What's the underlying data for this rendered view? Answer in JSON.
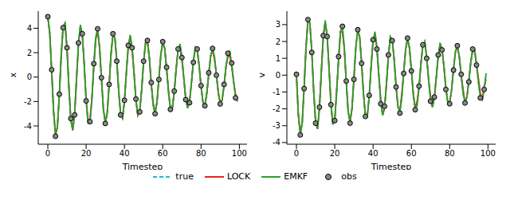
{
  "chart_data": [
    {
      "type": "line",
      "x_label": "Timestep",
      "y_label": "x",
      "legend": "bottom",
      "grid": false,
      "xlim": [
        -5,
        104
      ],
      "xticks": [
        0,
        20,
        40,
        60,
        80,
        100
      ],
      "ylim": [
        -5.5,
        5.4
      ],
      "yticks": [
        -4,
        -2,
        0,
        2,
        4
      ],
      "x": [
        0,
        1,
        2,
        3,
        4,
        5,
        6,
        7,
        8,
        9,
        10,
        11,
        12,
        13,
        14,
        15,
        16,
        17,
        18,
        19,
        20,
        21,
        22,
        23,
        24,
        25,
        26,
        27,
        28,
        29,
        30,
        31,
        32,
        33,
        34,
        35,
        36,
        37,
        38,
        39,
        40,
        41,
        42,
        43,
        44,
        45,
        46,
        47,
        48,
        49,
        50,
        51,
        52,
        53,
        54,
        55,
        56,
        57,
        58,
        59,
        60,
        61,
        62,
        63,
        64,
        65,
        66,
        67,
        68,
        69,
        70,
        71,
        72,
        73,
        74,
        75,
        76,
        77,
        78,
        79,
        80,
        81,
        82,
        83,
        84,
        85,
        86,
        87,
        88,
        89,
        90,
        91,
        92,
        93,
        94,
        95,
        96,
        97,
        98,
        99
      ],
      "series": [
        {
          "name": "true",
          "color": "#17becf",
          "line_style": "dashed",
          "values": [
            4.9,
            3.62,
            0.53,
            -2.77,
            -4.61,
            -4.09,
            -1.49,
            1.8,
            4.13,
            4.33,
            2.33,
            -0.81,
            -3.48,
            -4.35,
            -3.0,
            -0.15,
            2.71,
            4.15,
            3.48,
            1.04,
            -1.87,
            -3.79,
            -3.76,
            -1.82,
            1.0,
            3.26,
            3.84,
            2.45,
            -0.14,
            -2.62,
            -3.73,
            -2.94,
            -0.67,
            1.9,
            3.46,
            3.23,
            1.38,
            -1.13,
            -3.03,
            -3.36,
            -1.98,
            0.37,
            2.5,
            3.33,
            2.46,
            0.36,
            -1.88,
            -3.13,
            -2.78,
            -1.01,
            1.22,
            2.8,
            2.94,
            1.58,
            -0.55,
            -2.36,
            -2.95,
            -2.04,
            -0.1,
            1.84,
            2.83,
            2.36,
            0.71,
            -1.27,
            -2.58,
            -2.55,
            -1.24,
            0.68,
            2.22,
            2.61,
            1.67,
            -0.1,
            -1.79,
            -2.53,
            -2.0,
            -0.45,
            1.29,
            2.35,
            2.2,
            0.94,
            -0.77,
            -2.06,
            -2.28,
            -1.35,
            0.25,
            1.7,
            2.26,
            1.67,
            0.24,
            -1.28,
            -2.13,
            -1.89,
            -0.69,
            0.83,
            1.9,
            1.99,
            1.07,
            -0.37,
            -1.61,
            -2.0
          ]
        },
        {
          "name": "LOCK",
          "color": "#e8251d",
          "line_style": "solid",
          "values": [
            4.9,
            3.62,
            0.53,
            -2.77,
            -4.85,
            -4.09,
            -1.49,
            1.8,
            4.13,
            4.33,
            2.33,
            -0.81,
            -3.48,
            -4.35,
            -3.0,
            -0.15,
            2.71,
            4.15,
            3.48,
            1.04,
            -1.87,
            -3.55,
            -3.4,
            -1.82,
            0.8,
            3.05,
            3.84,
            2.45,
            -0.14,
            -2.62,
            -3.73,
            -2.94,
            -0.67,
            1.9,
            3.46,
            3.23,
            1.38,
            -1.13,
            -3.03,
            -3.36,
            -1.98,
            0.37,
            2.5,
            3.33,
            2.2,
            0.36,
            -1.88,
            -3.13,
            -2.78,
            -1.01,
            1.22,
            2.8,
            2.94,
            1.58,
            -0.55,
            -2.1,
            -2.95,
            -2.04,
            -0.1,
            1.84,
            2.83,
            2.36,
            0.71,
            -1.05,
            -2.58,
            -2.55,
            -1.24,
            0.68,
            2.22,
            2.35,
            1.4,
            -0.1,
            -1.79,
            -2.53,
            -2.0,
            -0.45,
            1.29,
            2.35,
            2.2,
            0.94,
            -0.77,
            -2.06,
            -2.28,
            -1.35,
            0.25,
            1.7,
            2.26,
            1.45,
            0.24,
            -1.28,
            -2.13,
            -1.89,
            -0.69,
            0.83,
            1.65,
            1.75,
            0.85,
            -0.37,
            -1.4,
            -1.8
          ]
        },
        {
          "name": "EMKF",
          "color": "#2ca02c",
          "line_style": "solid",
          "values": [
            4.9,
            3.62,
            0.53,
            -2.77,
            -4.61,
            -4.09,
            -1.49,
            1.8,
            4.13,
            4.45,
            2.33,
            -0.81,
            -3.48,
            -4.35,
            -3.0,
            -0.15,
            2.71,
            4.28,
            3.48,
            1.04,
            -1.87,
            -3.79,
            -3.76,
            -1.82,
            1.0,
            3.26,
            3.95,
            2.45,
            -0.14,
            -2.62,
            -3.73,
            -2.94,
            -0.67,
            1.9,
            3.58,
            3.23,
            1.38,
            -1.13,
            -3.03,
            -3.36,
            -1.98,
            0.37,
            2.5,
            3.45,
            2.46,
            0.36,
            -1.88,
            -3.13,
            -2.78,
            -1.01,
            1.22,
            2.8,
            3.05,
            1.58,
            -0.55,
            -2.36,
            -2.95,
            -2.04,
            -0.1,
            1.84,
            2.95,
            2.36,
            0.71,
            -1.27,
            -2.58,
            -2.55,
            -1.24,
            0.68,
            2.22,
            2.72,
            1.67,
            -0.1,
            -1.79,
            -2.53,
            -2.0,
            -0.45,
            1.29,
            2.45,
            2.2,
            0.94,
            -0.77,
            -2.06,
            -2.28,
            -1.35,
            0.25,
            1.7,
            2.37,
            1.67,
            0.24,
            -1.28,
            -2.13,
            -1.89,
            -0.69,
            0.83,
            1.9,
            2.1,
            1.07,
            -0.37,
            -1.61,
            -2.0
          ]
        },
        {
          "name": "obs",
          "color": "#888888",
          "type": "scatter",
          "marker": "o",
          "x": [
            0,
            2,
            4,
            6,
            8,
            10,
            12,
            14,
            16,
            18,
            20,
            22,
            24,
            26,
            28,
            30,
            32,
            34,
            36,
            38,
            40,
            42,
            44,
            46,
            48,
            50,
            52,
            54,
            56,
            58,
            60,
            62,
            64,
            66,
            68,
            70,
            72,
            74,
            76,
            78,
            80,
            82,
            84,
            86,
            88,
            90,
            92,
            94,
            96,
            98
          ],
          "values": [
            4.95,
            0.6,
            -4.85,
            -1.4,
            4.05,
            2.4,
            -3.4,
            -3.1,
            2.8,
            3.55,
            -1.95,
            -3.65,
            1.1,
            3.95,
            -0.05,
            -3.8,
            -0.6,
            3.55,
            1.3,
            -3.1,
            -1.9,
            2.6,
            2.4,
            -1.8,
            -2.85,
            1.3,
            3.0,
            -0.45,
            -3.0,
            -0.2,
            2.9,
            0.8,
            -2.65,
            -1.15,
            2.3,
            1.6,
            -1.85,
            -2.1,
            1.2,
            2.3,
            -0.7,
            -2.35,
            0.35,
            2.35,
            0.15,
            -2.2,
            -0.6,
            1.95,
            1.15,
            -1.7
          ]
        }
      ]
    },
    {
      "type": "line",
      "x_label": "Timestep",
      "y_label": "v",
      "legend": "bottom",
      "grid": false,
      "xlim": [
        -5,
        104
      ],
      "xticks": [
        0,
        20,
        40,
        60,
        80,
        100
      ],
      "ylim": [
        -4.1,
        3.8
      ],
      "yticks": [
        -4,
        -3,
        -2,
        -1,
        0,
        1,
        2,
        3
      ],
      "x": [
        0,
        1,
        2,
        3,
        4,
        5,
        6,
        7,
        8,
        9,
        10,
        11,
        12,
        13,
        14,
        15,
        16,
        17,
        18,
        19,
        20,
        21,
        22,
        23,
        24,
        25,
        26,
        27,
        28,
        29,
        30,
        31,
        32,
        33,
        34,
        35,
        36,
        37,
        38,
        39,
        40,
        41,
        42,
        43,
        44,
        45,
        46,
        47,
        48,
        49,
        50,
        51,
        52,
        53,
        54,
        55,
        56,
        57,
        58,
        59,
        60,
        61,
        62,
        63,
        64,
        65,
        66,
        67,
        68,
        69,
        70,
        71,
        72,
        73,
        74,
        75,
        76,
        77,
        78,
        79,
        80,
        81,
        82,
        83,
        84,
        85,
        86,
        87,
        88,
        89,
        90,
        91,
        92,
        93,
        94,
        95,
        96,
        97,
        98,
        99
      ],
      "series": [
        {
          "name": "true",
          "color": "#17becf",
          "line_style": "dashed",
          "values": [
            0,
            -2.37,
            -3.5,
            -2.84,
            -0.75,
            1.67,
            3.21,
            3.09,
            1.41,
            -0.95,
            -2.79,
            -3.18,
            -1.96,
            0.23,
            2.27,
            3.13,
            2.38,
            0.45,
            -1.68,
            -2.92,
            -2.66,
            -1.05,
            1.04,
            2.59,
            2.8,
            1.58,
            -0.41,
            -2.16,
            -2.78,
            -1.98,
            -0.2,
            1.66,
            2.63,
            2.27,
            0.75,
            -1.11,
            -2.39,
            -2.42,
            -1.24,
            0.55,
            2.04,
            2.46,
            1.63,
            0,
            -1.61,
            -2.38,
            -1.93,
            -0.51,
            1.13,
            2.18,
            2.1,
            0.96,
            -0.65,
            -1.89,
            -2.16,
            -1.33,
            0.16,
            1.54,
            2.13,
            1.62,
            0.31,
            -1.14,
            -1.98,
            -1.8,
            -0.72,
            0.71,
            1.76,
            1.9,
            1.07,
            -0.28,
            -1.47,
            -1.89,
            -1.34,
            -0.13,
            1.13,
            1.79,
            1.55,
            0.51,
            -0.76,
            -1.62,
            -1.65,
            -0.85,
            0.37,
            1.39,
            1.67,
            1.11,
            0,
            -1.09,
            -1.61,
            -1.31,
            -0.35,
            0.77,
            1.49,
            1.43,
            0.65,
            -0.44,
            -1.29,
            -1.47,
            -0.9,
            0.11
          ]
        },
        {
          "name": "LOCK",
          "color": "#e8251d",
          "line_style": "solid",
          "values": [
            0,
            -2.37,
            -3.5,
            -2.84,
            -0.75,
            1.67,
            3.21,
            3.09,
            1.41,
            -0.95,
            -2.79,
            -3.18,
            -1.96,
            0.23,
            2.27,
            3.13,
            2.38,
            0.45,
            -1.68,
            -2.92,
            -2.66,
            -0.8,
            0.85,
            2.59,
            2.55,
            1.58,
            -0.41,
            -2.16,
            -2.78,
            -1.98,
            -0.2,
            1.66,
            2.63,
            2.27,
            0.75,
            -1.11,
            -2.39,
            -2.42,
            -1.24,
            0.55,
            2.04,
            2.46,
            1.63,
            0,
            -1.4,
            -2.38,
            -1.93,
            -0.51,
            1.13,
            2.18,
            2.1,
            0.96,
            -0.65,
            -1.89,
            -2.16,
            -1.1,
            0.16,
            1.54,
            2.13,
            1.62,
            0.31,
            -1.14,
            -1.98,
            -1.55,
            -0.72,
            0.71,
            1.76,
            1.9,
            1.07,
            -0.28,
            -1.25,
            -1.89,
            -1.34,
            -0.13,
            1.13,
            1.79,
            1.55,
            0.51,
            -0.76,
            -1.62,
            -1.65,
            -0.85,
            0.37,
            1.39,
            1.67,
            1.11,
            0,
            -0.85,
            -1.61,
            -1.31,
            -0.35,
            0.77,
            1.49,
            1.43,
            0.65,
            -0.2,
            -1.05,
            -1.47,
            -0.65,
            -0.25
          ]
        },
        {
          "name": "EMKF",
          "color": "#2ca02c",
          "line_style": "solid",
          "values": [
            0,
            -2.37,
            -3.5,
            -2.84,
            -0.75,
            1.67,
            3.35,
            3.09,
            1.41,
            -0.95,
            -2.79,
            -3.18,
            -1.96,
            0.23,
            2.27,
            3.25,
            2.38,
            0.45,
            -1.68,
            -2.92,
            -2.66,
            -1.05,
            1.04,
            2.59,
            2.92,
            1.58,
            -0.41,
            -2.16,
            -2.78,
            -1.98,
            -0.2,
            1.66,
            2.75,
            2.27,
            0.75,
            -1.11,
            -2.39,
            -2.42,
            -1.24,
            0.55,
            2.04,
            2.58,
            1.63,
            0,
            -1.61,
            -2.38,
            -1.93,
            -0.51,
            1.13,
            2.3,
            2.1,
            0.96,
            -0.65,
            -1.89,
            -2.16,
            -1.33,
            0.16,
            1.54,
            2.25,
            1.62,
            0.31,
            -1.14,
            -1.98,
            -1.8,
            -0.72,
            0.71,
            1.76,
            2.02,
            1.07,
            -0.28,
            -1.47,
            -1.89,
            -1.34,
            -0.13,
            1.13,
            1.92,
            1.55,
            0.51,
            -0.76,
            -1.62,
            -1.65,
            -0.85,
            0.37,
            1.39,
            1.8,
            1.11,
            0,
            -1.09,
            -1.61,
            -1.31,
            -0.35,
            0.77,
            1.49,
            1.55,
            0.65,
            -0.44,
            -1.29,
            -1.47,
            -0.9,
            0.11
          ]
        },
        {
          "name": "obs",
          "color": "#888888",
          "type": "scatter",
          "marker": "o",
          "x": [
            0,
            2,
            4,
            6,
            8,
            10,
            12,
            14,
            16,
            18,
            20,
            22,
            24,
            26,
            28,
            30,
            32,
            34,
            36,
            38,
            40,
            42,
            44,
            46,
            48,
            50,
            52,
            54,
            56,
            58,
            60,
            62,
            64,
            66,
            68,
            70,
            72,
            74,
            76,
            78,
            80,
            82,
            84,
            86,
            88,
            90,
            92,
            94,
            96,
            98
          ],
          "values": [
            0.05,
            -3.55,
            -0.8,
            3.3,
            1.35,
            -2.85,
            -1.9,
            2.35,
            2.3,
            -1.75,
            -2.7,
            1.1,
            2.9,
            -0.35,
            -2.85,
            -0.25,
            2.7,
            0.7,
            -2.45,
            -1.2,
            2.1,
            1.55,
            -1.7,
            -1.85,
            1.2,
            2.05,
            -0.7,
            -2.25,
            0.1,
            2.2,
            0.25,
            -2.05,
            -0.65,
            1.8,
            1.0,
            -1.55,
            -1.3,
            1.2,
            1.5,
            -0.85,
            -1.7,
            0.3,
            1.75,
            0.05,
            -1.65,
            -0.4,
            1.55,
            0.6,
            -1.35,
            -0.85
          ]
        }
      ]
    }
  ]
}
